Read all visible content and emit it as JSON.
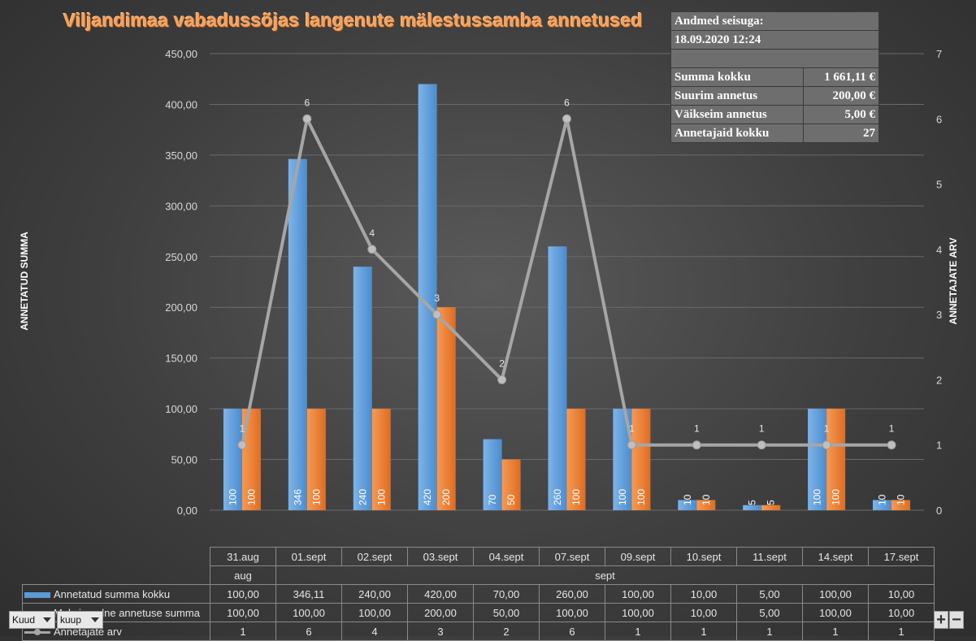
{
  "chart_data": {
    "type": "bar",
    "title": "Viljandimaa vabadussõjas langenute mälestussamba annetused",
    "ylabel": "ANNETATUD SUMMA",
    "y2label": "ANNETAJATE ARV",
    "ylim": [
      0,
      450
    ],
    "y2lim": [
      0,
      7
    ],
    "y_ticks": [
      "0,00",
      "50,00",
      "100,00",
      "150,00",
      "200,00",
      "250,00",
      "300,00",
      "350,00",
      "400,00",
      "450,00"
    ],
    "y2_ticks": [
      "0",
      "1",
      "2",
      "3",
      "4",
      "5",
      "6",
      "7"
    ],
    "categories": [
      "31.aug",
      "01.sept",
      "02.sept",
      "03.sept",
      "04.sept",
      "07.sept",
      "09.sept",
      "10.sept",
      "11.sept",
      "14.sept",
      "17.sept"
    ],
    "month_groups": [
      {
        "label": "aug",
        "count": 1
      },
      {
        "label": "sept",
        "count": 10
      }
    ],
    "series": [
      {
        "name": "Annetatud summa kokku",
        "kind": "bar",
        "color": "#5b9bd5",
        "values": [
          100,
          346.11,
          240,
          420,
          70,
          260,
          100,
          10,
          5,
          100,
          10
        ],
        "bar_labels": [
          "100",
          "346",
          "240",
          "420",
          "70",
          "260",
          "100",
          "10",
          "5",
          "100",
          "10"
        ],
        "table_values": [
          "100,00",
          "346,11",
          "240,00",
          "420,00",
          "70,00",
          "260,00",
          "100,00",
          "10,00",
          "5,00",
          "100,00",
          "10,00"
        ]
      },
      {
        "name": "Maksimaalne annetuse summa",
        "kind": "bar",
        "color": "#ed7d31",
        "values": [
          100,
          100,
          100,
          200,
          50,
          100,
          100,
          10,
          5,
          100,
          10
        ],
        "bar_labels": [
          "100",
          "100",
          "100",
          "200",
          "50",
          "100",
          "100",
          "10",
          "5",
          "100",
          "10"
        ],
        "table_values": [
          "100,00",
          "100,00",
          "100,00",
          "200,00",
          "50,00",
          "100,00",
          "100,00",
          "10,00",
          "5,00",
          "100,00",
          "10,00"
        ]
      },
      {
        "name": "Annetajate arv",
        "kind": "line",
        "axis": "secondary",
        "color": "#a6a6a6",
        "values": [
          1,
          6,
          4,
          3,
          2,
          6,
          1,
          1,
          1,
          1,
          1
        ],
        "bar_labels": [
          "1",
          "6",
          "4",
          "3",
          "2",
          "6",
          "1",
          "1",
          "1",
          "1",
          "1"
        ],
        "table_values": [
          "1",
          "6",
          "4",
          "3",
          "2",
          "6",
          "1",
          "1",
          "1",
          "1",
          "1"
        ]
      }
    ],
    "grid": true,
    "legend": "data-table"
  },
  "info": {
    "header_line1": "Andmed seisuga:",
    "header_line2": "18.09.2020 12:24",
    "rows": [
      {
        "label": "Summa kokku",
        "value": "1 661,11 €"
      },
      {
        "label": "Suurim annetus",
        "value": "200,00 €"
      },
      {
        "label": "Väikseim annetus",
        "value": "5,00 €"
      },
      {
        "label": "Annetajaid kokku",
        "value": "27"
      }
    ]
  },
  "controls": {
    "filter1": "Kuud",
    "filter2": "kuup",
    "zoom_in": "+",
    "zoom_out": "−"
  }
}
